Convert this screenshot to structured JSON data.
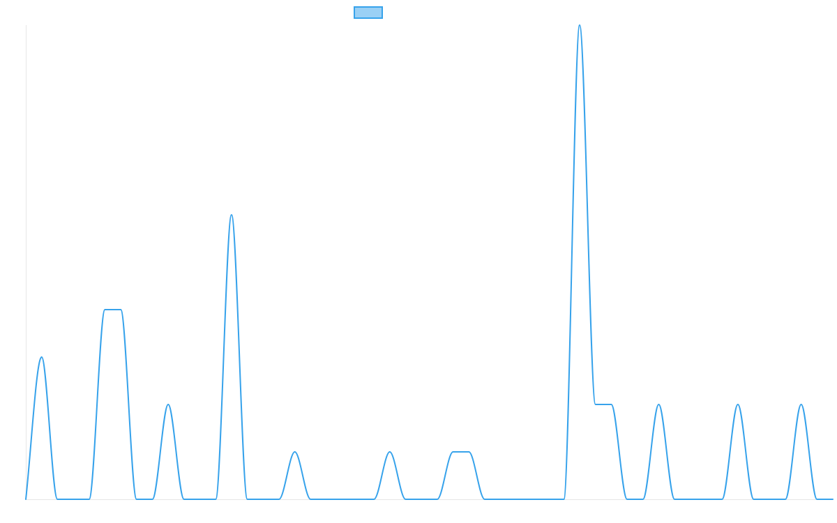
{
  "chart_data": {
    "type": "line",
    "title": "",
    "xlabel": "",
    "ylabel": "",
    "x": [
      0,
      1,
      2,
      3,
      4,
      5,
      6,
      7,
      8,
      9,
      10,
      11,
      12,
      13,
      14,
      15,
      16,
      17,
      18,
      19,
      20,
      21,
      22,
      23,
      24,
      25,
      26,
      27,
      28,
      29,
      30,
      31,
      32,
      33,
      34,
      35,
      36,
      37,
      38,
      39,
      40,
      41,
      42,
      43,
      44,
      45,
      46,
      47,
      48,
      49,
      50,
      51
    ],
    "ylim": [
      0,
      30
    ],
    "grid": false,
    "legend": "top-center",
    "series": [
      {
        "name": "",
        "color": "#36a2eb",
        "fill": "#9ad0f5",
        "values": [
          0,
          9,
          0,
          0,
          0,
          12,
          12,
          0,
          0,
          6,
          0,
          0,
          0,
          18,
          0,
          0,
          0,
          3,
          0,
          0,
          0,
          0,
          0,
          3,
          0,
          0,
          0,
          3,
          3,
          0,
          0,
          0,
          0,
          0,
          0,
          30,
          6,
          6,
          0,
          0,
          6,
          0,
          0,
          0,
          0,
          6,
          0,
          0,
          0,
          6,
          0,
          0
        ]
      }
    ]
  }
}
